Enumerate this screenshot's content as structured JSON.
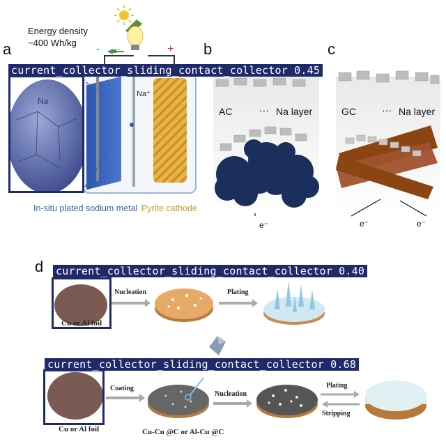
{
  "panel_letters": {
    "a": "a",
    "b": "b",
    "c": "c",
    "d": "d"
  },
  "panel_a": {
    "energy_line1": "Energy density",
    "energy_line2": "~400 Wh/kg",
    "minus": "-",
    "plus": "+",
    "electron": "e⁻",
    "na_label": "Na",
    "na_ion": "Na⁺",
    "caption_left": "In-situ plated sodium metal",
    "caption_right": "Pyrite cathode"
  },
  "panel_b": {
    "left_label": "AC",
    "dots": "···",
    "right_label": "Na layer",
    "electron": "e⁻"
  },
  "panel_c": {
    "left_label": "GC",
    "dots": "···",
    "right_label": "Na layer",
    "electron_left": "e⁻",
    "electron_right": "e⁻"
  },
  "panel_d": {
    "row1": {
      "foil": "Cu or Al foil",
      "step1": "Nucleation",
      "step2": "Plating"
    },
    "row2": {
      "foil": "Cu or Al foil",
      "step1": "Coating",
      "coated": "Cu-Cu @C or Al-Cu @C",
      "step2": "Nucleation",
      "plating": "Plating",
      "stripping": "Stripping"
    }
  },
  "detections": [
    {
      "label": "current_collector_sliding_contact_collector 0.45"
    },
    {
      "label": "current_collector_sliding_contact_collector 0.40"
    },
    {
      "label": "current_collector_sliding_contact_collector 0.68"
    }
  ],
  "colors": {
    "detection": "#1f2a6b",
    "na_blue": "#3a5fb0",
    "pyrite_gold": "#d9a43a",
    "gc_brown": "#8b4513",
    "ac_navy": "#1a2f5c"
  }
}
